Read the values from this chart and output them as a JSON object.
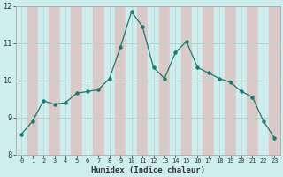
{
  "x": [
    0,
    1,
    2,
    3,
    4,
    5,
    6,
    7,
    8,
    9,
    10,
    11,
    12,
    13,
    14,
    15,
    16,
    17,
    18,
    19,
    20,
    21,
    22,
    23
  ],
  "y": [
    8.55,
    8.9,
    9.45,
    9.35,
    9.4,
    9.65,
    9.7,
    9.75,
    10.05,
    10.9,
    11.85,
    11.45,
    10.35,
    10.05,
    10.75,
    11.05,
    10.35,
    10.2,
    10.05,
    9.95,
    9.7,
    9.55,
    8.9,
    8.45
  ],
  "xlabel": "Humidex (Indice chaleur)",
  "ylim": [
    8,
    12
  ],
  "xlim": [
    -0.5,
    23.5
  ],
  "yticks": [
    8,
    9,
    10,
    11,
    12
  ],
  "xticks": [
    0,
    1,
    2,
    3,
    4,
    5,
    6,
    7,
    8,
    9,
    10,
    11,
    12,
    13,
    14,
    15,
    16,
    17,
    18,
    19,
    20,
    21,
    22,
    23
  ],
  "line_color": "#1a7a6e",
  "marker_color": "#1a7a6e",
  "bg_color": "#ceeeed",
  "band_color_even": "#ceeeed",
  "band_color_odd": "#ddc8c8",
  "grid_h_color": "#b8d4d0",
  "grid_v_color": "#b8d4d0",
  "tick_label_color": "#333333",
  "xlabel_color": "#333333",
  "spine_color": "#aaaaaa"
}
